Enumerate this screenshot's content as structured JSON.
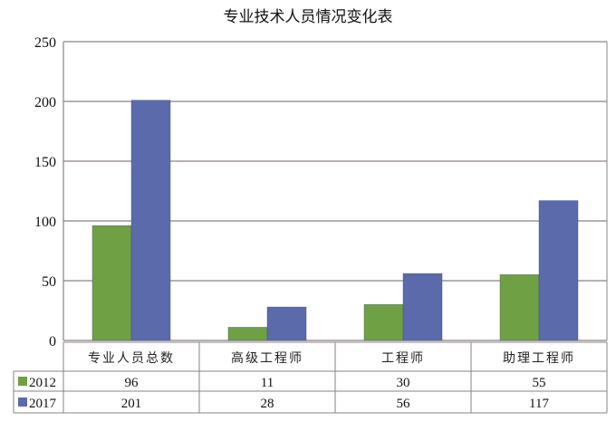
{
  "chart_data": {
    "type": "bar",
    "title": "专业技术人员情况变化表",
    "categories": [
      "专业人员总数",
      "高级工程师",
      "工程师",
      "助理工程师"
    ],
    "series": [
      {
        "name": "2012",
        "values": [
          96,
          11,
          30,
          55
        ],
        "color": "#70a044"
      },
      {
        "name": "2017",
        "values": [
          201,
          28,
          56,
          117
        ],
        "color": "#5b6aab"
      }
    ],
    "ylim": [
      0,
      250
    ],
    "yticks": [
      0,
      50,
      100,
      150,
      200,
      250
    ],
    "grid": true,
    "legend": "data-table-left",
    "gridline_color": "#8c8288"
  }
}
